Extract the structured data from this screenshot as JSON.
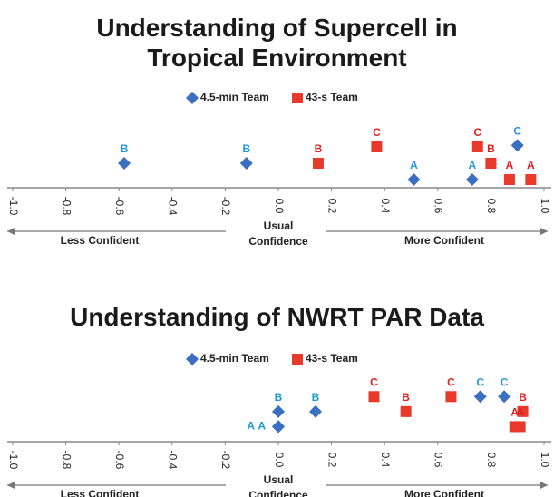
{
  "chart_data": [
    {
      "type": "scatter",
      "title": "Understanding of Supercell in Tropical Environment",
      "xlim": [
        -1,
        1
      ],
      "xticks": [
        {
          "value": -1,
          "label": "-1.0"
        },
        -0.8,
        -0.6,
        -0.4,
        -0.2,
        {
          "value": 0,
          "label": "0.0"
        },
        0.2,
        0.4,
        0.6,
        0.8,
        {
          "value": 1,
          "label": "1.0"
        }
      ],
      "ylim": [
        0,
        6
      ],
      "axis_labels": [
        "Less Confident",
        "Usual Confidence",
        "More Confident"
      ],
      "series": [
        {
          "name": "4.5-min Team",
          "color": "#3b6fc2",
          "marker": "diamond",
          "label_color": "#1e98d4",
          "x": [
            -0.58,
            -0.12,
            0.51,
            0.73,
            0.9
          ],
          "values": [
            3,
            3,
            1,
            1,
            5.2
          ],
          "point_labels": [
            "B",
            "B",
            "A",
            "A",
            "C"
          ]
        },
        {
          "name": "43-s Team",
          "color": "#e8392b",
          "marker": "square",
          "label_color": "#e02020",
          "x": [
            0.15,
            0.37,
            0.75,
            0.8,
            0.87,
            0.95
          ],
          "values": [
            3,
            5,
            5,
            3,
            1,
            1
          ],
          "point_labels": [
            "B",
            "C",
            "C",
            "B",
            "A",
            "A"
          ]
        }
      ]
    },
    {
      "type": "scatter",
      "title": "Understanding of NWRT PAR Data",
      "xlim": [
        -1,
        1
      ],
      "xticks": [
        {
          "value": -1,
          "label": "-1.0"
        },
        -0.8,
        -0.6,
        -0.4,
        -0.2,
        {
          "value": 0,
          "label": "0.0"
        },
        0.2,
        0.4,
        0.6,
        0.8,
        {
          "value": 1,
          "label": "1.0"
        }
      ],
      "ylim": [
        0,
        3.5
      ],
      "axis_labels": [
        "Less Confident",
        "Usual Confidence",
        "More Confident"
      ],
      "series": [
        {
          "name": "4.5-min Team",
          "color": "#3b6fc2",
          "marker": "diamond",
          "label_color": "#1e98d4",
          "x": [
            0.0,
            0.0,
            0.0,
            0.14,
            0.76,
            0.85
          ],
          "values": [
            1,
            1,
            2,
            2,
            3,
            3
          ],
          "point_labels": [
            "A",
            "A",
            "B",
            "B",
            "C",
            "C"
          ]
        },
        {
          "name": "43-s Team",
          "color": "#e8392b",
          "marker": "square",
          "label_color": "#e02020",
          "x": [
            0.36,
            0.48,
            0.65,
            0.92,
            0.89,
            0.91
          ],
          "values": [
            3,
            2,
            3,
            2,
            1,
            1
          ],
          "point_labels": [
            "C",
            "B",
            "C",
            "B",
            "A",
            "A"
          ]
        }
      ]
    }
  ]
}
